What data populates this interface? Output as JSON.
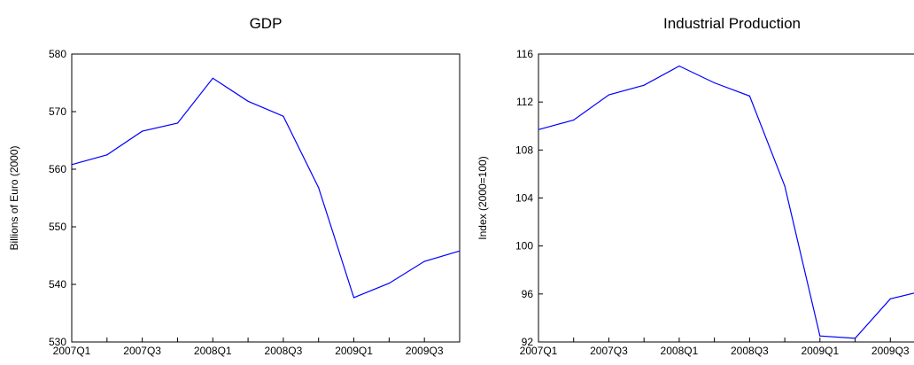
{
  "chart_data": [
    {
      "type": "line",
      "title": "GDP",
      "xlabel": "",
      "ylabel": "Billions of Euro (2000)",
      "x": [
        "2007Q1",
        "2007Q2",
        "2007Q3",
        "2007Q4",
        "2008Q1",
        "2008Q2",
        "2008Q3",
        "2008Q4",
        "2009Q1",
        "2009Q2",
        "2009Q3",
        "2009Q4"
      ],
      "xtick_labels": [
        "2007Q1",
        "2007Q3",
        "2008Q1",
        "2008Q3",
        "2009Q1",
        "2009Q3"
      ],
      "ylim": [
        530,
        580
      ],
      "yticks": [
        530,
        540,
        550,
        560,
        570,
        580
      ],
      "series": [
        {
          "values": [
            560.8,
            562.5,
            566.6,
            568.0,
            575.8,
            571.8,
            569.2,
            556.8,
            537.7,
            540.2,
            544.0,
            545.8
          ]
        }
      ],
      "line_color": "#0000ff",
      "grid": false
    },
    {
      "type": "line",
      "title": "Industrial Production",
      "xlabel": "",
      "ylabel": "Index (2000=100)",
      "x": [
        "2007Q1",
        "2007Q2",
        "2007Q3",
        "2007Q4",
        "2008Q1",
        "2008Q2",
        "2008Q3",
        "2008Q4",
        "2009Q1",
        "2009Q2",
        "2009Q3",
        "2009Q4"
      ],
      "xtick_labels": [
        "2007Q1",
        "2007Q3",
        "2008Q1",
        "2008Q3",
        "2009Q1",
        "2009Q3"
      ],
      "ylim": [
        92,
        116
      ],
      "yticks": [
        92,
        96,
        100,
        104,
        108,
        112,
        116
      ],
      "series": [
        {
          "values": [
            109.7,
            110.5,
            112.6,
            113.4,
            115.0,
            113.6,
            112.5,
            105.0,
            92.5,
            92.3,
            95.6,
            96.3
          ]
        }
      ],
      "line_color": "#0000ff",
      "grid": false
    }
  ]
}
